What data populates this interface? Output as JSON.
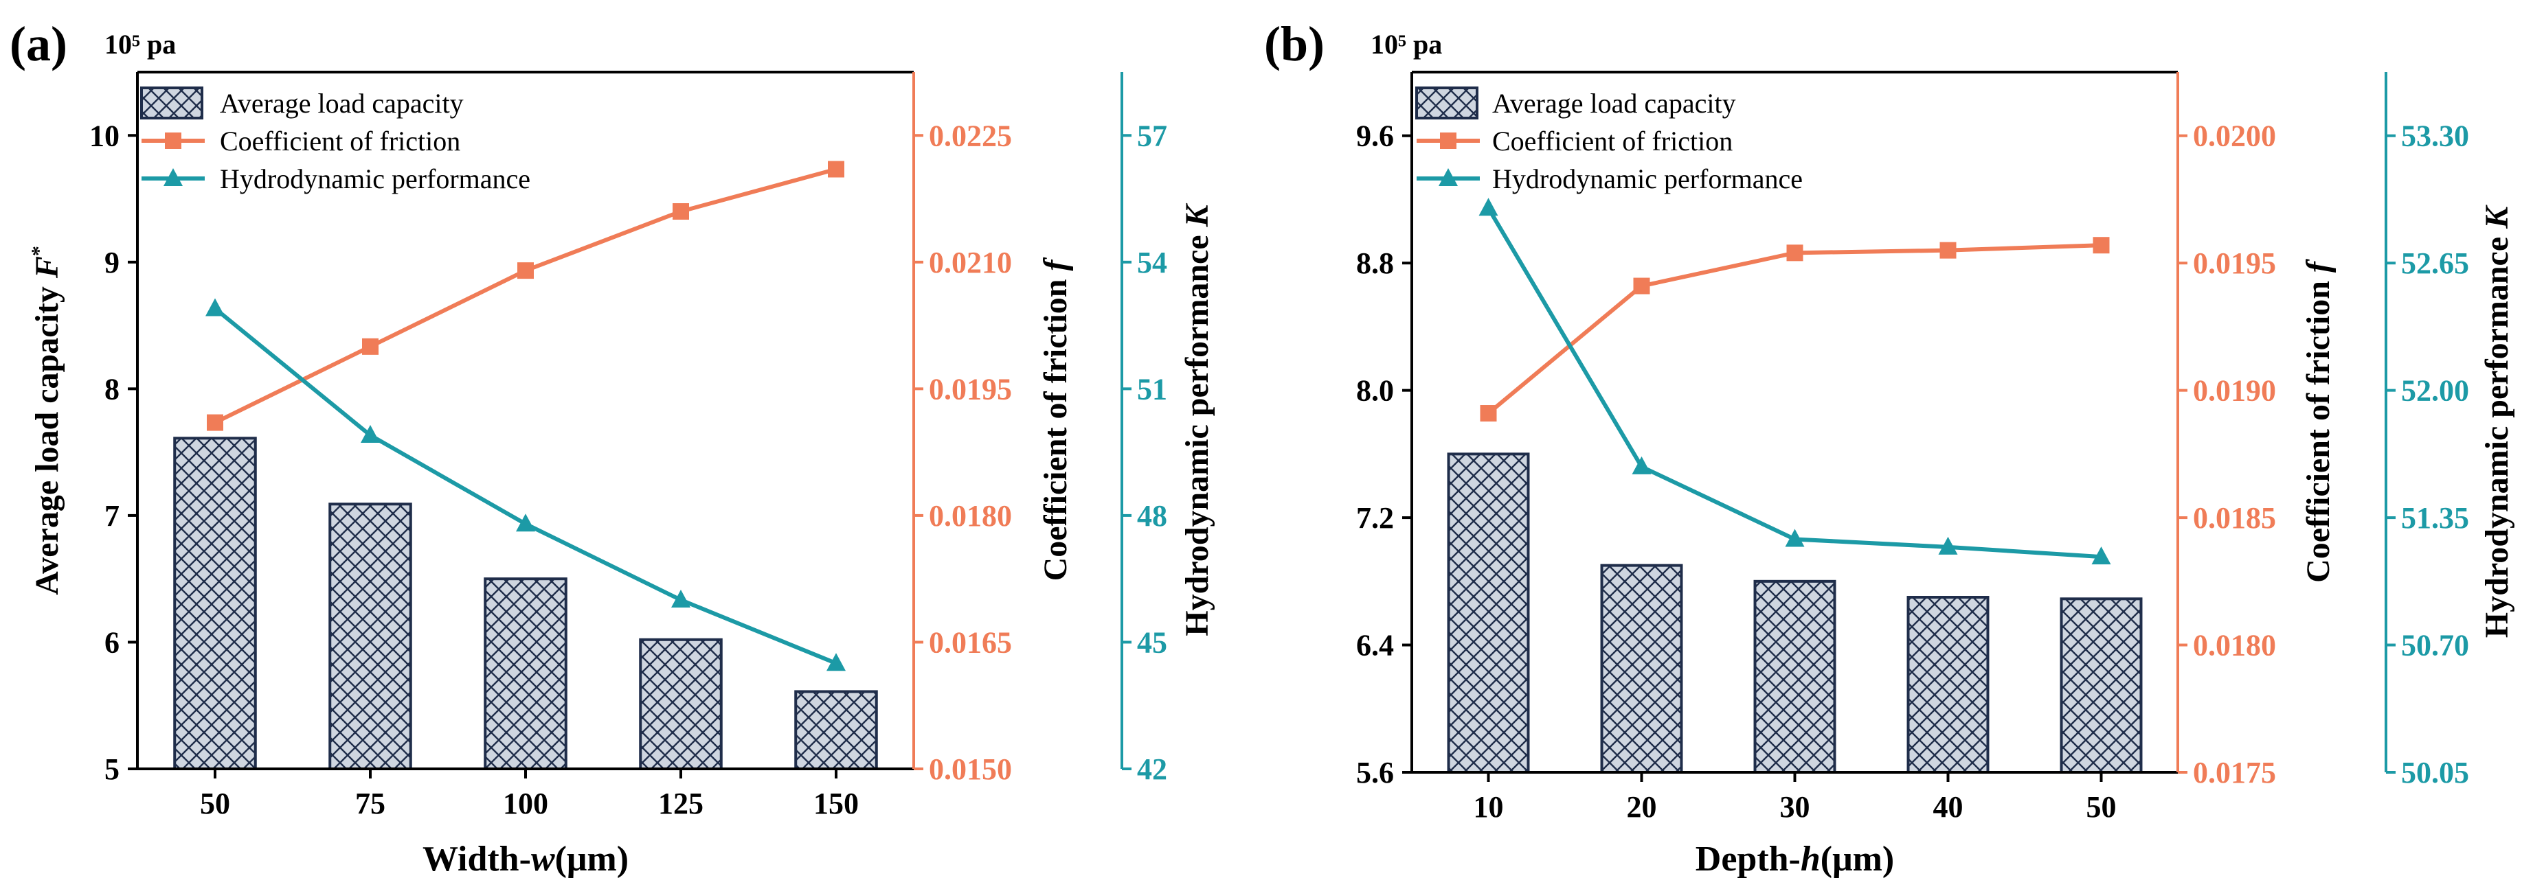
{
  "colors": {
    "bar_fill": "#cfd6e0",
    "bar_hatch": "#1f2d4a",
    "friction": "#f07c57",
    "hydro": "#1c9aa6",
    "axis": "#000000",
    "legend_box": "#c8ccd2"
  },
  "chart_data": [
    {
      "type": "bar",
      "panel_label": "(a)",
      "unit_label": "10⁵ pa",
      "xlabel_prefix": "Width-",
      "xlabel_var": "w",
      "xlabel_suffix": "(μm)",
      "categories": [
        "50",
        "75",
        "100",
        "125",
        "150"
      ],
      "left_axis": {
        "label_text": "Average load capacity ",
        "label_var": "F",
        "label_sup": "*",
        "ylim": [
          5,
          10.5
        ],
        "ticks": [
          5,
          6,
          7,
          8,
          9,
          10
        ],
        "tick_labels": [
          "5",
          "6",
          "7",
          "8",
          "9",
          "10"
        ]
      },
      "mid_axis": {
        "label_text": "Coefficient of friction ",
        "label_var": "f",
        "ylim": [
          0.015,
          0.02325
        ],
        "ticks": [
          0.015,
          0.0165,
          0.018,
          0.0195,
          0.021,
          0.0225
        ],
        "tick_labels": [
          "0.0150",
          "0.0165",
          "0.0180",
          "0.0195",
          "0.0210",
          "0.0225"
        ]
      },
      "right_axis": {
        "label_text": "Hydrodynamic performance ",
        "label_var": "K",
        "ylim": [
          42,
          58.5
        ],
        "ticks": [
          42,
          45,
          48,
          51,
          54,
          57
        ],
        "tick_labels": [
          "42",
          "45",
          "48",
          "51",
          "54",
          "57"
        ]
      },
      "series": [
        {
          "name": "Average load capacity",
          "kind": "bar",
          "axis": "left",
          "values": [
            7.61,
            7.09,
            6.5,
            6.02,
            5.61
          ]
        },
        {
          "name": "Coefficient of friction",
          "kind": "line",
          "marker": "square",
          "axis": "mid",
          "values": [
            0.0191,
            0.02,
            0.0209,
            0.0216,
            0.0221
          ]
        },
        {
          "name": "Hydrodynamic performance",
          "kind": "line",
          "marker": "triangle",
          "axis": "right",
          "values": [
            52.9,
            49.9,
            47.8,
            46.0,
            44.5
          ]
        }
      ],
      "legend": {
        "items": [
          "Average load capacity",
          "Coefficient of friction",
          "Hydrodynamic performance"
        ],
        "position": "top-left"
      }
    },
    {
      "type": "bar",
      "panel_label": "(b)",
      "unit_label": "10⁵ pa",
      "xlabel_prefix": "Depth-",
      "xlabel_var": "h",
      "xlabel_suffix": "(μm)",
      "categories": [
        "10",
        "20",
        "30",
        "40",
        "50"
      ],
      "left_axis": {
        "label_text": "",
        "label_var": "",
        "label_sup": "",
        "ylim": [
          5.6,
          10.0
        ],
        "ticks": [
          5.6,
          6.4,
          7.2,
          8.0,
          8.8,
          9.6
        ],
        "tick_labels": [
          "5.6",
          "6.4",
          "7.2",
          "8.0",
          "8.8",
          "9.6"
        ]
      },
      "mid_axis": {
        "label_text": "Coefficient of friction ",
        "label_var": "f",
        "ylim": [
          0.0175,
          0.02025
        ],
        "ticks": [
          0.0175,
          0.018,
          0.0185,
          0.019,
          0.0195,
          0.02
        ],
        "tick_labels": [
          "0.0175",
          "0.0180",
          "0.0185",
          "0.0190",
          "0.0195",
          "0.0200"
        ]
      },
      "right_axis": {
        "label_text": "Hydrodynamic performance ",
        "label_var": "K",
        "ylim": [
          50.05,
          53.625
        ],
        "ticks": [
          50.05,
          50.7,
          51.35,
          52.0,
          52.65,
          53.3
        ],
        "tick_labels": [
          "50.05",
          "50.70",
          "51.35",
          "52.00",
          "52.65",
          "53.30"
        ]
      },
      "series": [
        {
          "name": "Average load capacity",
          "kind": "bar",
          "axis": "left",
          "values": [
            7.6,
            6.9,
            6.8,
            6.7,
            6.69
          ]
        },
        {
          "name": "Coefficient of friction",
          "kind": "line",
          "marker": "square",
          "axis": "mid",
          "values": [
            0.01891,
            0.01941,
            0.01954,
            0.01955,
            0.01957
          ]
        },
        {
          "name": "Hydrodynamic performance",
          "kind": "line",
          "marker": "triangle",
          "axis": "right",
          "values": [
            52.93,
            51.61,
            51.24,
            51.2,
            51.15
          ]
        }
      ],
      "legend": {
        "items": [
          "Average load capacity",
          "Coefficient of friction",
          "Hydrodynamic performance"
        ],
        "position": "top-left"
      }
    }
  ]
}
